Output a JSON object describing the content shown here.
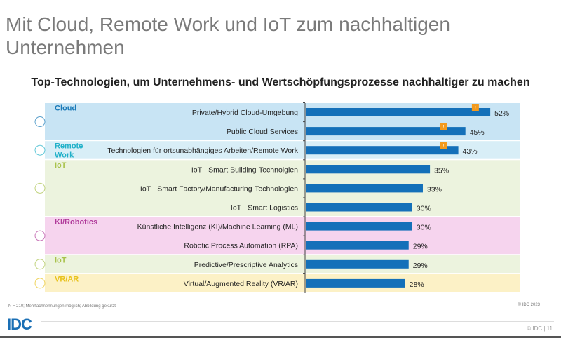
{
  "slide": {
    "title": "Mit Cloud, Remote Work und IoT zum nachhaltigen Unternehmen",
    "footnote": "N = 210; Mehrfachnennungen möglich; Abbildung gekürzt",
    "copyright": "© IDC 2023",
    "logo": "IDC",
    "page_footer": "© IDC |  11"
  },
  "chart_data": {
    "type": "bar",
    "orientation": "horizontal",
    "title": "Top-Technologien, um Unternehmens- und Wertschöpfungsprozesse nachhaltiger zu machen",
    "xlim": [
      0,
      100
    ],
    "grid": false,
    "categories": [
      "Private/Hybrid Cloud-Umgebung",
      "Public Cloud Services",
      "Technologien für ortsunabhängiges Arbeiten/Remote Work",
      "IoT - Smart Building-Technolgien",
      "IoT - Smart Factory/Manufacturing-Technologien",
      "IoT - Smart Logistics",
      "Künstliche Intelligenz (KI)/Machine Learning (ML)",
      "Robotic Process Automation (RPA)",
      "Predictive/Prescriptive Analytics",
      "Virtual/Augmented Reality (VR/AR)"
    ],
    "values": [
      52,
      45,
      43,
      35,
      33,
      30,
      30,
      29,
      29,
      28
    ],
    "value_labels": [
      "52%",
      "45%",
      "43%",
      "35%",
      "33%",
      "30%",
      "30%",
      "29%",
      "29%",
      "28%"
    ],
    "bar_color": "#1470b9",
    "markers": [
      {
        "row": 0,
        "value": 48,
        "label": "!"
      },
      {
        "row": 1,
        "value": 39,
        "label": "!"
      },
      {
        "row": 2,
        "value": 39,
        "label": "!"
      }
    ],
    "marker_color": "#f39a1e",
    "groups": [
      {
        "label": "Cloud",
        "rows": [
          0,
          1
        ],
        "color": "#c8e4f4",
        "label_color": "#1a7ab8",
        "icon": "cloud-icon"
      },
      {
        "label": "Remote Work",
        "rows": [
          2,
          2
        ],
        "color": "#d8eef7",
        "label_color": "#1fb0c8",
        "icon": "building-network-icon"
      },
      {
        "label": "IoT",
        "rows": [
          3,
          5
        ],
        "color": "#ecf3de",
        "label_color": "#a8c24a",
        "icon": "factory-truck-icon"
      },
      {
        "label": "KI/Robotics",
        "rows": [
          6,
          7
        ],
        "color": "#f6d4ee",
        "label_color": "#b03a9a",
        "icon": "brain-head-icon"
      },
      {
        "label": "IoT",
        "rows": [
          8,
          8
        ],
        "color": "#ecf3de",
        "label_color": "#a8c24a",
        "icon": "factory-truck-icon"
      },
      {
        "label": "VR/AR",
        "rows": [
          9,
          9
        ],
        "color": "#fcf1c6",
        "label_color": "#e8c21a",
        "icon": "vr-glasses-icon"
      }
    ]
  }
}
